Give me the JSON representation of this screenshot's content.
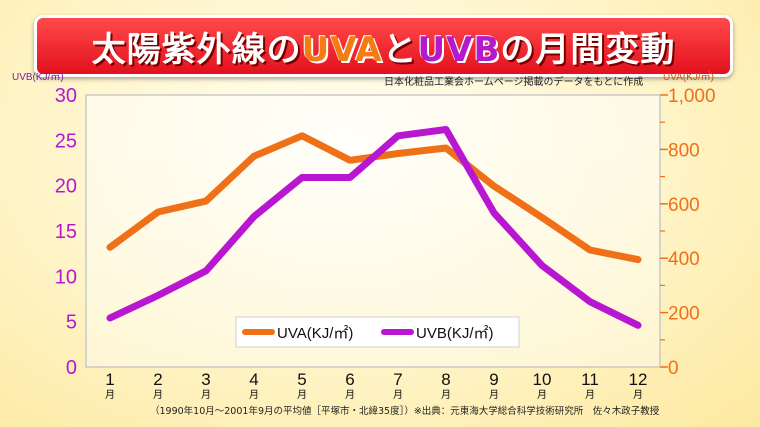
{
  "title": {
    "prefix": "太陽紫外線の",
    "uva": "UVA",
    "connector": "と",
    "uvb": "UVB",
    "suffix": "の月間変動"
  },
  "source_note": "日本化粧品工業会ホームページ掲載のデータをもとに作成",
  "footnote": "（1990年10月～2001年9月の平均値［平塚市・北緯35度］）※出典：元東海大学総合科学技術研究所　佐々木政子教授",
  "colors": {
    "uva": "#f07018",
    "uvb": "#b816d0",
    "banner": "#e8131f"
  },
  "chart_data": {
    "type": "line",
    "categories": [
      "1",
      "2",
      "3",
      "4",
      "5",
      "6",
      "7",
      "8",
      "9",
      "10",
      "11",
      "12"
    ],
    "category_suffix": "月",
    "left_axis": {
      "label": "UVB(KJ/㎡)",
      "ylim": [
        0,
        30
      ],
      "ticks": [
        0,
        5,
        10,
        15,
        20,
        25,
        30
      ],
      "color": "#b816d0"
    },
    "right_axis": {
      "label": "UVA(KJ/㎡)",
      "ylim": [
        0,
        1000
      ],
      "ticks": [
        "0",
        "200",
        "400",
        "600",
        "800",
        "1,000"
      ],
      "color": "#f07018"
    },
    "series": [
      {
        "name": "UVA(KJ/㎡)",
        "axis": "right",
        "values": [
          440,
          570,
          610,
          775,
          850,
          760,
          785,
          805,
          665,
          550,
          430,
          395
        ]
      },
      {
        "name": "UVB(KJ/㎡)",
        "axis": "left",
        "values": [
          5.4,
          7.9,
          10.6,
          16.6,
          20.9,
          20.9,
          25.5,
          26.2,
          17.0,
          11.2,
          7.2,
          4.6
        ]
      }
    ],
    "legend_position": "bottom-center",
    "grid": false
  }
}
